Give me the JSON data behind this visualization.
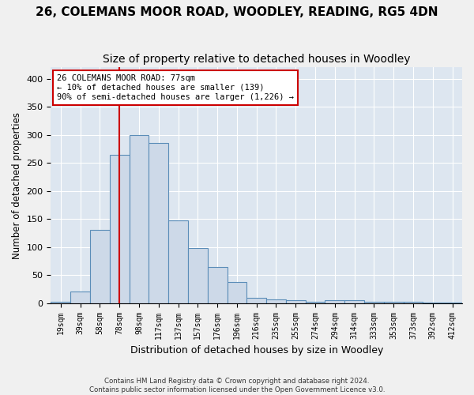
{
  "title": "26, COLEMANS MOOR ROAD, WOODLEY, READING, RG5 4DN",
  "subtitle": "Size of property relative to detached houses in Woodley",
  "xlabel": "Distribution of detached houses by size in Woodley",
  "ylabel": "Number of detached properties",
  "categories": [
    "19sqm",
    "39sqm",
    "58sqm",
    "78sqm",
    "98sqm",
    "117sqm",
    "137sqm",
    "157sqm",
    "176sqm",
    "196sqm",
    "216sqm",
    "235sqm",
    "255sqm",
    "274sqm",
    "294sqm",
    "314sqm",
    "333sqm",
    "353sqm",
    "373sqm",
    "392sqm",
    "412sqm"
  ],
  "values": [
    3,
    21,
    130,
    265,
    299,
    285,
    147,
    98,
    65,
    38,
    9,
    6,
    5,
    3,
    5,
    5,
    3,
    3,
    2,
    1,
    1
  ],
  "bar_color": "#cdd9e8",
  "bar_edge_color": "#5b8db8",
  "vline_index": 3.0,
  "annotation_title": "26 COLEMANS MOOR ROAD: 77sqm",
  "annotation_line1": "← 10% of detached houses are smaller (139)",
  "annotation_line2": "90% of semi-detached houses are larger (1,226) →",
  "annotation_box_color": "#cc0000",
  "footer_line1": "Contains HM Land Registry data © Crown copyright and database right 2024.",
  "footer_line2": "Contains public sector information licensed under the Open Government Licence v3.0.",
  "ylim": [
    0,
    420
  ],
  "yticks": [
    0,
    50,
    100,
    150,
    200,
    250,
    300,
    350,
    400
  ],
  "background_color": "#dde6f0",
  "grid_color": "#ffffff",
  "fig_bg_color": "#f0f0f0",
  "title_fontsize": 11,
  "subtitle_fontsize": 10
}
